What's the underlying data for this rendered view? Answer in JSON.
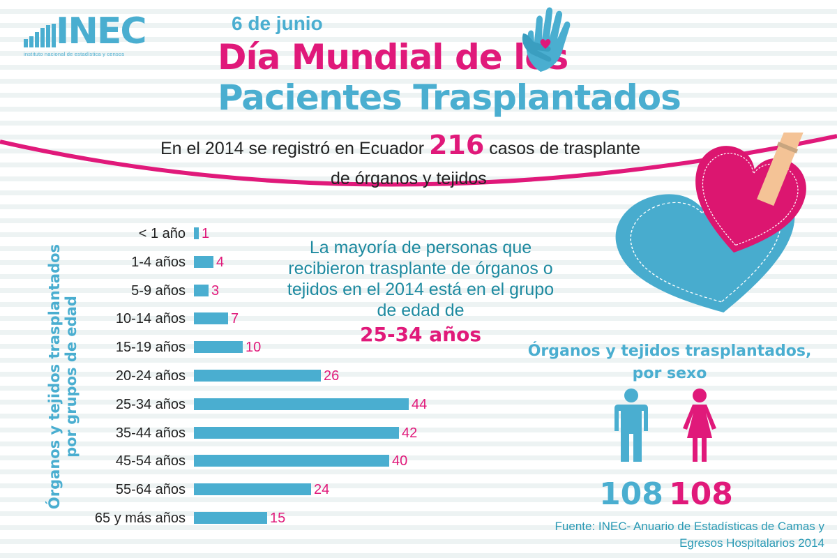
{
  "logo": {
    "name": "INEC",
    "subtitle": "instituto nacional de estadística y censos"
  },
  "header": {
    "date": "6 de junio",
    "title_line1": "Día Mundial de los",
    "title_line2": "Pacientes Trasplantados"
  },
  "intro": {
    "before": "En el 2014 se registró en Ecuador ",
    "number": "216",
    "after": " casos de trasplante",
    "line2": "de órganos y tejidos"
  },
  "note": {
    "text": "La mayoría de personas que recibieron trasplante de órganos o tejidos en el 2014 está en el grupo de edad de",
    "highlight": "25-34 años"
  },
  "colors": {
    "blue": "#4aaed0",
    "pink": "#e0197a",
    "teal": "#1e8aa0"
  },
  "chart_data": {
    "type": "bar",
    "orientation": "horizontal",
    "ylabel": "Órganos y tejidos trasplantados por grupos de edad",
    "categories": [
      "< 1 año",
      "1-4 años",
      "5-9 años",
      "10-14 años",
      "15-19 años",
      "20-24 años",
      "25-34 años",
      "35-44 años",
      "45-54 años",
      "55-64 años",
      "65 y más años"
    ],
    "values": [
      1,
      4,
      3,
      7,
      10,
      26,
      44,
      42,
      40,
      24,
      15
    ],
    "data_labels": true,
    "grid": false
  },
  "sex": {
    "title_line1": "Órganos y tejidos trasplantados,",
    "title_line2": "por sexo",
    "male": {
      "icon": "male-person-icon",
      "count": "108"
    },
    "female": {
      "icon": "female-person-icon",
      "count": "108"
    }
  },
  "source": {
    "line1": "Fuente: INEC- Anuario de Estadísticas de Camas y",
    "line2": "Egresos Hospitalarios 2014"
  }
}
